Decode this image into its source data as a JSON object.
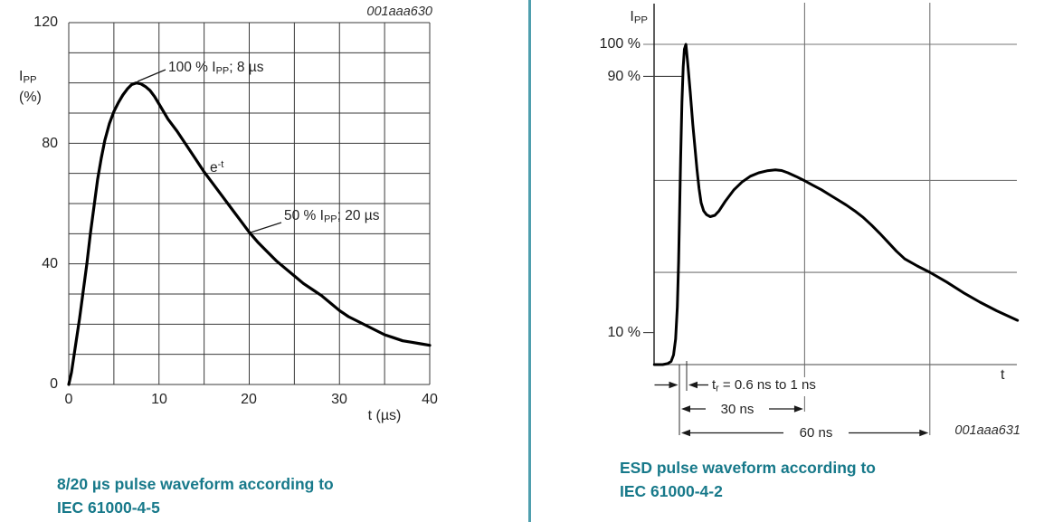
{
  "divider_color": "#4f9fae",
  "left_chart": {
    "figure_id": "001aaa630",
    "y_axis_title": {
      "base": "I",
      "sub": "PP",
      "unit": "(%)"
    },
    "y_ticks": [
      "120",
      "80",
      "40",
      "0"
    ],
    "x_ticks": [
      "0",
      "10",
      "20",
      "30",
      "40"
    ],
    "x_axis_title": "t (µs)",
    "annotations": {
      "peak": {
        "pre": "100 % I",
        "sub": "PP",
        "post": "; 8 µs"
      },
      "decay": {
        "base": "e",
        "sup": "-t"
      },
      "half": {
        "pre": "50 % I",
        "sub": "PP",
        "post": "; 20 µs"
      }
    },
    "caption_line1": "8/20 µs pulse waveform according to",
    "caption_line2": "IEC 61000-4-5"
  },
  "right_chart": {
    "figure_id": "001aaa631",
    "y_axis_title": {
      "base": "I",
      "sub": "PP"
    },
    "y_labels": [
      "100 %",
      "90 %",
      "10 %"
    ],
    "x_axis_title": "t",
    "dims": {
      "tr": {
        "base": "t",
        "sub": "r",
        "post": " = 0.6 ns to 1 ns"
      },
      "d30": "30 ns",
      "d60": "60 ns"
    },
    "caption_line1": "ESD pulse waveform according to",
    "caption_line2": "IEC 61000-4-2"
  },
  "chart_data": [
    {
      "type": "line",
      "title": "8/20 µs pulse waveform according to IEC 61000-4-5",
      "figure_id": "001aaa630",
      "xlabel": "t (µs)",
      "ylabel": "IPP (%)",
      "xlim": [
        0,
        40
      ],
      "ylim": [
        0,
        120
      ],
      "x_grid_step": 5,
      "y_grid_step": 10,
      "grid": true,
      "key_points": [
        {
          "label": "100 % IPP",
          "t_us": 8,
          "pct": 100
        },
        {
          "label": "50 % IPP",
          "t_us": 20,
          "pct": 50
        },
        {
          "label": "decay",
          "shape": "e-t exponential"
        }
      ],
      "x": [
        0,
        0.3,
        0.6,
        0.9,
        1.2,
        1.6,
        2,
        2.4,
        2.8,
        3.2,
        3.6,
        4,
        4.5,
        5,
        5.5,
        6,
        6.5,
        7,
        7.5,
        8,
        8.5,
        9,
        9.5,
        10,
        11,
        12,
        13,
        14,
        15,
        16,
        17,
        18,
        19,
        20,
        21,
        22,
        23,
        24,
        25,
        26,
        27,
        28,
        29,
        30,
        31,
        32,
        33,
        34,
        35,
        36,
        37,
        38,
        39,
        40
      ],
      "y": [
        0,
        4,
        10,
        16,
        22,
        31,
        40,
        50,
        59,
        68,
        75,
        81,
        86.5,
        90.5,
        93.5,
        96,
        98,
        99.5,
        100,
        99.7,
        98.8,
        97.5,
        95.5,
        93,
        88,
        84,
        79.5,
        75,
        70.5,
        66.5,
        62.5,
        58.5,
        54.5,
        50.5,
        47,
        44,
        41,
        38.5,
        36,
        33.5,
        31.5,
        29.5,
        27,
        24.5,
        22.5,
        21,
        19.5,
        18,
        16.5,
        15.5,
        14.5,
        14,
        13.5,
        13
      ]
    },
    {
      "type": "line",
      "title": "ESD pulse waveform according to IEC 61000-4-2",
      "figure_id": "001aaa631",
      "xlabel": "t",
      "x_unit": "ns",
      "ylabel": "IPP",
      "y_unit": "% of IPP",
      "y_marker_lines_pct": [
        100,
        90,
        10
      ],
      "h_gridlines_pct": [
        100,
        57.5,
        28.8
      ],
      "v_gridlines_ns": [
        30,
        60
      ],
      "key_points": [
        {
          "label": "rise time tr",
          "value": "0.6 ns to 1 ns"
        },
        {
          "label": "peak",
          "t_ns": 1.6,
          "pct": 100
        },
        {
          "label": "second hump",
          "t_ns": 23,
          "pct": 61
        },
        {
          "label": "at 30 ns",
          "pct": 57
        },
        {
          "label": "at 60 ns",
          "pct": 29
        }
      ],
      "x": [
        -6,
        -4,
        -2.8,
        -2,
        -1.4,
        -0.9,
        -0.5,
        -0.2,
        0,
        0.3,
        0.6,
        0.9,
        1.2,
        1.55,
        2,
        2.6,
        3.2,
        3.7,
        4.2,
        4.7,
        5.2,
        5.8,
        6.5,
        7.4,
        8.5,
        9.5,
        11,
        13,
        15,
        17,
        19,
        21,
        23,
        24.5,
        26,
        28,
        30,
        32,
        34,
        36,
        38,
        40,
        42,
        44,
        46,
        48,
        50,
        52,
        54,
        57,
        60,
        64,
        68,
        72,
        76,
        81
      ],
      "y": [
        0,
        0,
        0.3,
        1,
        3,
        8,
        18,
        32,
        45,
        65,
        82,
        93,
        98.5,
        100,
        94,
        85,
        75,
        68,
        61,
        55,
        50.5,
        48,
        46.8,
        46.2,
        46.6,
        48,
        51,
        54.5,
        57,
        58.8,
        59.9,
        60.5,
        60.8,
        60.6,
        59.9,
        58.7,
        57.4,
        56,
        54.6,
        53,
        51.4,
        49.8,
        48,
        46,
        43.6,
        41,
        38.2,
        35.4,
        33,
        30.8,
        28.8,
        25.8,
        22.5,
        19.5,
        16.8,
        13.8
      ]
    }
  ]
}
